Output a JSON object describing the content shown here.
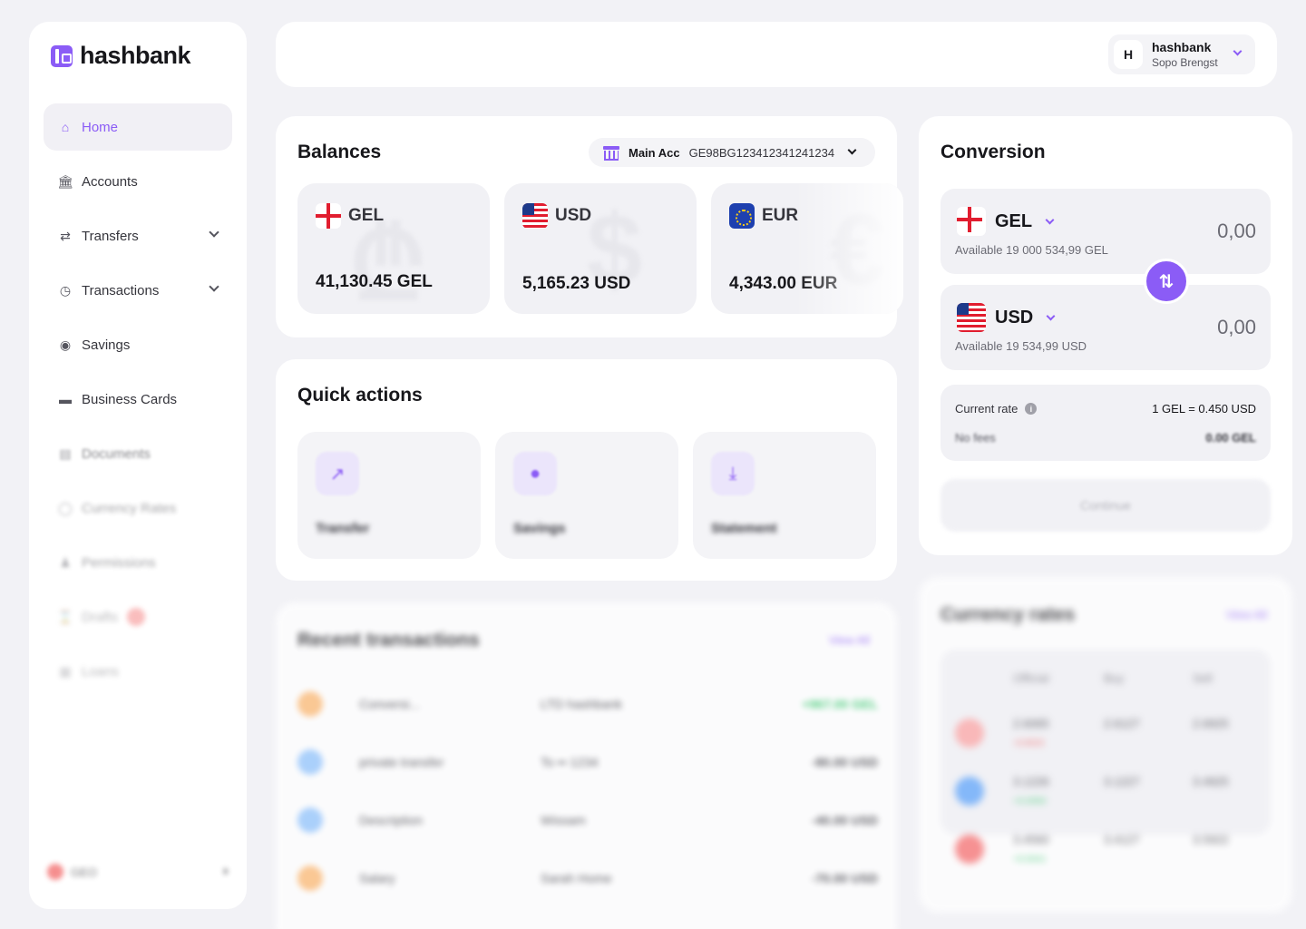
{
  "brand": {
    "name": "hashbank"
  },
  "sidebar": {
    "items": [
      {
        "label": "Home",
        "icon": "home-icon",
        "active": true
      },
      {
        "label": "Accounts",
        "icon": "bank-icon"
      },
      {
        "label": "Transfers",
        "icon": "transfer-arrows-icon",
        "expandable": true
      },
      {
        "label": "Transactions",
        "icon": "clock-icon",
        "expandable": true
      },
      {
        "label": "Savings",
        "icon": "piggy-bank-icon"
      },
      {
        "label": "Business Cards",
        "icon": "card-icon"
      },
      {
        "label": "Documents",
        "icon": "document-icon"
      },
      {
        "label": "Currency Rates",
        "icon": "currency-icon"
      },
      {
        "label": "Permissions",
        "icon": "users-icon"
      },
      {
        "label": "Drafts",
        "icon": "hourglass-icon"
      },
      {
        "label": "Loans",
        "icon": "loan-icon"
      }
    ],
    "footer": {
      "language": "GEO"
    }
  },
  "header": {
    "profile": {
      "initial": "H",
      "name": "hashbank",
      "subtitle": "Sopo Brengst"
    }
  },
  "balances": {
    "title": "Balances",
    "account": {
      "label": "Main Acc",
      "number": "GE98BG123412341241234"
    },
    "cards": [
      {
        "currency": "GEL",
        "amount": "41,130.45 GEL",
        "symbol": "₾"
      },
      {
        "currency": "USD",
        "amount": "5,165.23 USD",
        "symbol": "$"
      },
      {
        "currency": "EUR",
        "amount": "4,343.00 EUR",
        "symbol": "€"
      }
    ]
  },
  "quick_actions": {
    "title": "Quick actions",
    "items": [
      {
        "label": "Transfer",
        "icon": "arrow-up-right-icon"
      },
      {
        "label": "Savings",
        "icon": "piggy-bank-icon"
      },
      {
        "label": "Statement",
        "icon": "download-icon"
      }
    ]
  },
  "recent": {
    "title": "Recent transactions",
    "view_all": "View All",
    "rows": [
      {
        "desc": "Conversi...",
        "party": "LTD hashbank",
        "amount": "+967.00 GEL",
        "dot": "#fdba74"
      },
      {
        "desc": "private transfer",
        "party": "To •• 1234",
        "amount": "-80.00 USD",
        "dot": "#93c5fd"
      },
      {
        "desc": "Description",
        "party": "Wissam",
        "amount": "-40.00 USD",
        "dot": "#93c5fd"
      },
      {
        "desc": "Salary",
        "party": "Sarah Home",
        "amount": "-70.00 USD",
        "dot": "#fdba74"
      }
    ]
  },
  "conversion": {
    "title": "Conversion",
    "from": {
      "currency": "GEL",
      "available": "Available 19 000 534,99 GEL",
      "value": "0,00"
    },
    "to": {
      "currency": "USD",
      "available": "Available 19 534,99 USD",
      "value": "0,00"
    },
    "rate_label": "Current rate",
    "rate_value": "1 GEL = 0.450 USD",
    "fee_label": "No fees",
    "fee_value": "0.00 GEL",
    "continue_label": "Continue"
  },
  "currency_rates": {
    "title": "Currency rates",
    "view_all": "View All",
    "headers": [
      "Official",
      "Buy",
      "Sell"
    ],
    "rows": [
      {
        "official": "2.6065",
        "buy": "2.6127",
        "sell": "2.6925",
        "change": "-0.0023",
        "color": "#f87171"
      },
      {
        "official": "3.1226",
        "buy": "3.1227",
        "sell": "3.4925",
        "change": "+0.0050",
        "color": "#60a5fa"
      },
      {
        "official": "3.4560",
        "buy": "3.4127",
        "sell": "3.5922",
        "change": "+0.0041",
        "color": "#f87171"
      }
    ]
  },
  "colors": {
    "accent": "#8b5cf6",
    "background": "#f2f2f6",
    "card": "#ffffff"
  }
}
